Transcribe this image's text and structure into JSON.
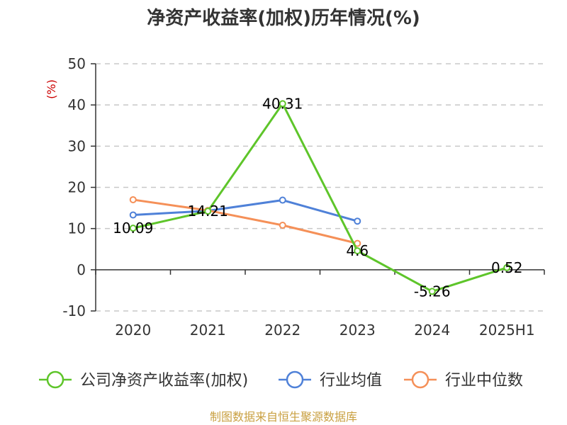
{
  "chart_data": {
    "type": "line",
    "title": "净资产收益率(加权)历年情况(%)",
    "ylabel": "(%)",
    "categories": [
      "2020",
      "2021",
      "2022",
      "2023",
      "2024",
      "2025H1"
    ],
    "y_ticks": [
      "50",
      "40",
      "30",
      "20",
      "10",
      "0",
      "-10"
    ],
    "ylim": [
      -10,
      50
    ],
    "grid": true,
    "legend_position": "bottom",
    "series": [
      {
        "name": "公司净资产收益率(加权)",
        "color": "#5ec52a",
        "values": [
          10.09,
          14.21,
          40.31,
          4.6,
          -5.26,
          0.52
        ],
        "labels": [
          "10.09",
          "14.21",
          "40.31",
          "4.6",
          "-5.26",
          "0.52"
        ]
      },
      {
        "name": "行业均值",
        "color": "#4f81d8",
        "values": [
          13.3,
          14.3,
          16.9,
          11.8,
          null,
          null
        ]
      },
      {
        "name": "行业中位数",
        "color": "#f59058",
        "values": [
          17.0,
          14.4,
          10.8,
          6.4,
          null,
          null
        ]
      }
    ]
  },
  "footer": {
    "source": "制图数据来自恒生聚源数据库"
  }
}
